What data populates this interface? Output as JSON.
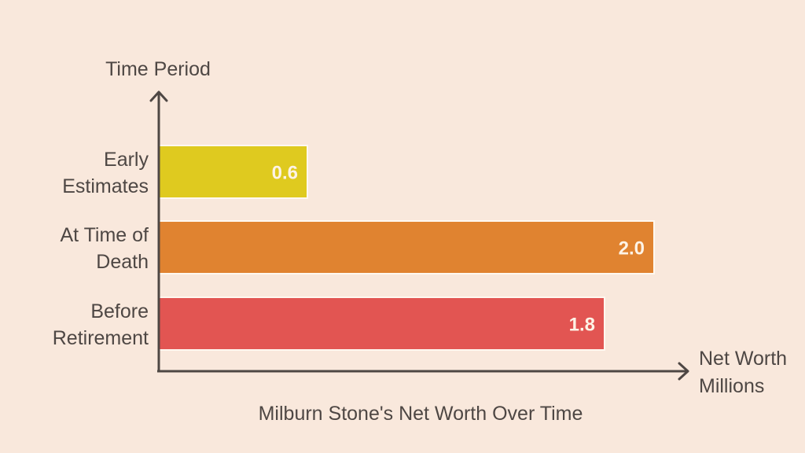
{
  "chart_data": {
    "type": "bar",
    "orientation": "horizontal",
    "title": "Milburn Stone's Net Worth Over Time",
    "ylabel": "Time Period",
    "xlabel_lines": [
      "Net Worth",
      "Millions"
    ],
    "categories": [
      {
        "lines": [
          "Early",
          "Estimates"
        ],
        "value": 0.6,
        "label": "0.6",
        "color": "#dfca1f"
      },
      {
        "lines": [
          "At Time of",
          "Death"
        ],
        "value": 2.0,
        "label": "2.0",
        "color": "#e08330"
      },
      {
        "lines": [
          "Before",
          "Retirement"
        ],
        "value": 1.8,
        "label": "1.8",
        "color": "#e25552"
      }
    ],
    "xlim": [
      0,
      2.1
    ],
    "grid": false
  },
  "colors": {
    "background": "#f9e8dc",
    "axis": "#4e4744",
    "text": "#4e4744",
    "value_text": "#fdf3e6"
  }
}
